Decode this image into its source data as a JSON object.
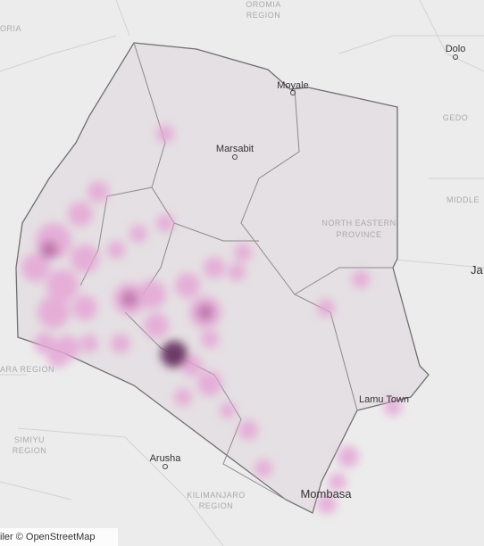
{
  "labels": [
    [
      "OROMIA",
      "REGION"
    ],
    [
      "Dolo"
    ],
    [
      "Moyale"
    ],
    [
      "GEDO"
    ],
    [
      "Marsabit"
    ],
    [
      "MIDDLE"
    ],
    [
      "NORTH EASTERN",
      "PROVINCE"
    ],
    [
      "Ja"
    ],
    [
      "ORIA"
    ],
    [
      "ARA REGION"
    ],
    [
      "Lamu Town"
    ],
    [
      "SIMIYU",
      "REGION"
    ],
    [
      "Arusha"
    ],
    [
      "KILIMANJARO",
      "REGION"
    ],
    [
      "Mombasa"
    ]
  ],
  "attribution": "iler © OpenStreetMap"
}
